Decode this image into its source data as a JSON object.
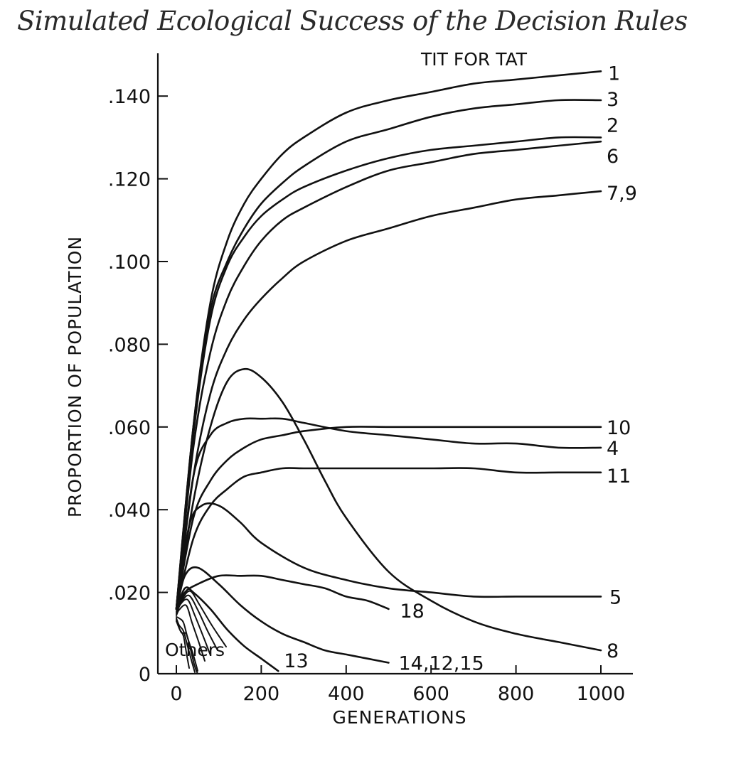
{
  "title": "Simulated Ecological Success of the Decision Rules",
  "chart_data": {
    "type": "line",
    "xlabel": "GENERATIONS",
    "ylabel": "PROPORTION OF POPULATION",
    "xlim": [
      0,
      1000
    ],
    "ylim": [
      0,
      0.15
    ],
    "xticks": [
      0,
      200,
      400,
      600,
      800,
      1000
    ],
    "xtick_labels": [
      "0",
      "200",
      "400",
      "600",
      "800",
      "1000"
    ],
    "yticks": [
      0,
      0.02,
      0.04,
      0.06,
      0.08,
      0.1,
      0.12,
      0.14
    ],
    "ytick_labels": [
      "0",
      ".020",
      ".040",
      ".060",
      ".080",
      ".100",
      ".120",
      ".140"
    ],
    "grid": false,
    "legend": "none (series labeled at line ends)",
    "annotations": [
      "TIT FOR TAT",
      "Others"
    ],
    "series": [
      {
        "name": "1",
        "x": [
          0,
          40,
          80,
          120,
          160,
          200,
          250,
          300,
          400,
          500,
          600,
          700,
          800,
          900,
          1000
        ],
        "y": [
          0.016,
          0.06,
          0.09,
          0.105,
          0.114,
          0.12,
          0.126,
          0.13,
          0.136,
          0.139,
          0.141,
          0.143,
          0.144,
          0.145,
          0.146
        ]
      },
      {
        "name": "3",
        "x": [
          0,
          40,
          80,
          120,
          160,
          200,
          250,
          300,
          400,
          500,
          600,
          700,
          800,
          900,
          1000
        ],
        "y": [
          0.016,
          0.06,
          0.088,
          0.1,
          0.108,
          0.114,
          0.119,
          0.123,
          0.129,
          0.132,
          0.135,
          0.137,
          0.138,
          0.139,
          0.139
        ]
      },
      {
        "name": "2",
        "x": [
          0,
          40,
          80,
          120,
          160,
          200,
          250,
          300,
          400,
          500,
          600,
          700,
          800,
          900,
          1000
        ],
        "y": [
          0.016,
          0.058,
          0.086,
          0.099,
          0.106,
          0.111,
          0.115,
          0.118,
          0.122,
          0.125,
          0.127,
          0.128,
          0.129,
          0.13,
          0.13
        ]
      },
      {
        "name": "6",
        "x": [
          0,
          40,
          80,
          120,
          160,
          200,
          250,
          300,
          400,
          500,
          600,
          700,
          800,
          900,
          1000
        ],
        "y": [
          0.016,
          0.055,
          0.078,
          0.091,
          0.099,
          0.105,
          0.11,
          0.113,
          0.118,
          0.122,
          0.124,
          0.126,
          0.127,
          0.128,
          0.129
        ]
      },
      {
        "name": "7,9",
        "x": [
          0,
          40,
          80,
          120,
          160,
          200,
          250,
          300,
          400,
          500,
          600,
          700,
          800,
          900,
          1000
        ],
        "y": [
          0.016,
          0.048,
          0.068,
          0.079,
          0.086,
          0.091,
          0.096,
          0.1,
          0.105,
          0.108,
          0.111,
          0.113,
          0.115,
          0.116,
          0.117
        ]
      },
      {
        "name": "10",
        "x": [
          0,
          40,
          80,
          120,
          160,
          200,
          250,
          300,
          400,
          500,
          600,
          700,
          800,
          900,
          1000
        ],
        "y": [
          0.016,
          0.038,
          0.047,
          0.052,
          0.055,
          0.057,
          0.058,
          0.059,
          0.06,
          0.06,
          0.06,
          0.06,
          0.06,
          0.06,
          0.06
        ]
      },
      {
        "name": "4",
        "x": [
          0,
          40,
          80,
          120,
          160,
          200,
          250,
          300,
          400,
          500,
          600,
          700,
          800,
          900,
          1000
        ],
        "y": [
          0.016,
          0.048,
          0.058,
          0.061,
          0.062,
          0.062,
          0.062,
          0.061,
          0.059,
          0.058,
          0.057,
          0.056,
          0.056,
          0.055,
          0.055
        ]
      },
      {
        "name": "11",
        "x": [
          0,
          40,
          80,
          120,
          160,
          200,
          250,
          300,
          400,
          500,
          600,
          700,
          800,
          900,
          1000
        ],
        "y": [
          0.016,
          0.033,
          0.041,
          0.045,
          0.048,
          0.049,
          0.05,
          0.05,
          0.05,
          0.05,
          0.05,
          0.05,
          0.049,
          0.049,
          0.049
        ]
      },
      {
        "name": "8",
        "x": [
          0,
          40,
          80,
          120,
          160,
          200,
          250,
          300,
          350,
          400,
          500,
          600,
          700,
          800,
          900,
          1000
        ],
        "y": [
          0.016,
          0.042,
          0.06,
          0.071,
          0.074,
          0.072,
          0.066,
          0.057,
          0.047,
          0.038,
          0.025,
          0.018,
          0.013,
          0.01,
          0.008,
          0.006
        ]
      },
      {
        "name": "5",
        "x": [
          0,
          30,
          60,
          100,
          150,
          200,
          300,
          400,
          500,
          600,
          700,
          800,
          900,
          1000
        ],
        "y": [
          0.016,
          0.036,
          0.041,
          0.041,
          0.037,
          0.032,
          0.026,
          0.023,
          0.021,
          0.02,
          0.019,
          0.019,
          0.019,
          0.019
        ]
      },
      {
        "name": "18",
        "x": [
          0,
          20,
          50,
          100,
          150,
          200,
          250,
          300,
          350,
          400,
          450,
          500
        ],
        "y": [
          0.016,
          0.02,
          0.022,
          0.024,
          0.024,
          0.024,
          0.023,
          0.022,
          0.021,
          0.019,
          0.018,
          0.016
        ]
      },
      {
        "name": "14,12,15",
        "x": [
          0,
          20,
          50,
          100,
          150,
          200,
          250,
          300,
          350,
          400,
          450,
          500
        ],
        "y": [
          0.016,
          0.024,
          0.026,
          0.022,
          0.017,
          0.013,
          0.01,
          0.008,
          0.006,
          0.005,
          0.004,
          0.003
        ]
      },
      {
        "name": "13",
        "x": [
          0,
          20,
          40,
          80,
          120,
          160,
          200,
          240
        ],
        "y": [
          0.016,
          0.021,
          0.02,
          0.016,
          0.011,
          0.007,
          0.004,
          0.001
        ]
      }
    ]
  }
}
